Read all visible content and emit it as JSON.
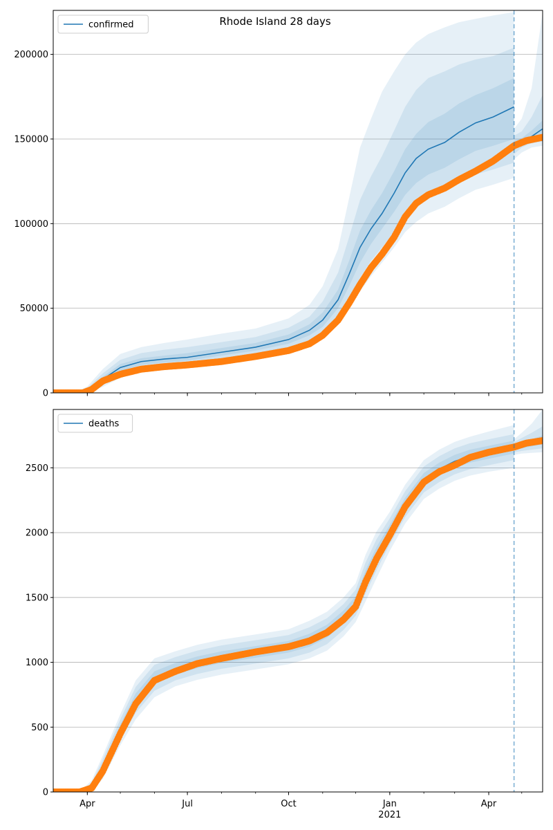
{
  "figure": {
    "title": "Rhode Island 28 days"
  },
  "chart_data": [
    {
      "type": "line",
      "legend": "confirmed",
      "legend_position": "top-left",
      "grid": "y",
      "xlim": [
        "2020-03-01",
        "2021-05-20"
      ],
      "ylim": [
        0,
        226000
      ],
      "yticks": [
        0,
        50000,
        100000,
        150000,
        200000
      ],
      "xticks": [
        {
          "date": "2020-04-01",
          "label": "Apr"
        },
        {
          "date": "2020-07-01",
          "label": "Jul"
        },
        {
          "date": "2020-10-01",
          "label": "Oct"
        },
        {
          "date": "2021-01-01",
          "label": "Jan",
          "sublabel": "2021"
        },
        {
          "date": "2021-04-01",
          "label": "Apr"
        }
      ],
      "forecast_start": "2021-04-24",
      "colors": {
        "model": "#1f77b4",
        "observed": "#ff7f0e"
      },
      "model": {
        "x": [
          "2020-03-01",
          "2020-03-20",
          "2020-04-01",
          "2020-04-15",
          "2020-05-01",
          "2020-05-20",
          "2020-06-10",
          "2020-07-01",
          "2020-08-01",
          "2020-09-01",
          "2020-10-01",
          "2020-10-20",
          "2020-11-01",
          "2020-11-15",
          "2020-11-25",
          "2020-12-05",
          "2020-12-15",
          "2020-12-25",
          "2021-01-05",
          "2021-01-15",
          "2021-01-25",
          "2021-02-05",
          "2021-02-20",
          "2021-03-05",
          "2021-03-20",
          "2021-04-05",
          "2021-04-24"
        ],
        "median": [
          0,
          0,
          1500,
          8000,
          15000,
          18500,
          20000,
          21000,
          24000,
          27000,
          31500,
          37000,
          43000,
          55000,
          70000,
          86000,
          97000,
          106000,
          118000,
          130000,
          138500,
          144000,
          148000,
          154000,
          159500,
          163000,
          169000
        ],
        "band_50": [
          [
            0,
            0,
            1000,
            6500,
            13000,
            16500,
            18000,
            19000,
            22000,
            25000,
            29000,
            34000,
            39000,
            50000,
            63000,
            77000,
            88000,
            97000,
            107000,
            117000,
            124000,
            129000,
            133000,
            138000,
            143000,
            146000,
            150000
          ],
          [
            0,
            0,
            2000,
            9500,
            17000,
            20500,
            22000,
            23500,
            26500,
            29500,
            34500,
            40500,
            47500,
            61000,
            78000,
            96000,
            108000,
            118000,
            131000,
            144000,
            153000,
            160000,
            165000,
            171000,
            176000,
            180000,
            186000
          ]
        ],
        "band_80": [
          [
            0,
            0,
            600,
            5000,
            11000,
            14000,
            15500,
            16500,
            19500,
            22500,
            26000,
            31000,
            35500,
            45000,
            56000,
            68000,
            78000,
            86000,
            95000,
            104000,
            110000,
            115000,
            119000,
            124000,
            129000,
            132000,
            136000
          ],
          [
            0,
            0,
            2800,
            11500,
            19500,
            23500,
            25500,
            27000,
            30000,
            33000,
            38500,
            45000,
            54000,
            71000,
            92000,
            114000,
            128000,
            140000,
            155000,
            169000,
            179000,
            186000,
            190000,
            194000,
            197000,
            199000,
            204000
          ]
        ],
        "band_95": [
          [
            0,
            0,
            300,
            3500,
            9000,
            12000,
            13500,
            14500,
            17500,
            20500,
            23500,
            28000,
            32000,
            40000,
            50000,
            60000,
            69000,
            77000,
            86000,
            95000,
            101000,
            106000,
            110000,
            115000,
            120000,
            123000,
            127000
          ],
          [
            0,
            0,
            3800,
            14000,
            23000,
            27000,
            29500,
            31500,
            35000,
            38000,
            44000,
            52000,
            63000,
            85000,
            115000,
            145000,
            162000,
            178000,
            190000,
            200000,
            207000,
            212000,
            216000,
            219000,
            221000,
            223000,
            225000
          ]
        ]
      },
      "forecast": {
        "x": [
          "2021-04-24",
          "2021-05-01",
          "2021-05-10",
          "2021-05-20"
        ],
        "median": [
          146500,
          148500,
          151500,
          156000
        ],
        "band_50": [
          [
            144000,
            147000,
            149500,
            152000
          ],
          [
            149000,
            150500,
            155000,
            161000
          ]
        ],
        "band_80": [
          [
            141000,
            145000,
            147500,
            148500
          ],
          [
            152000,
            154500,
            163000,
            176000
          ]
        ],
        "band_95": [
          [
            138000,
            142000,
            145000,
            146000
          ],
          [
            156000,
            162000,
            180000,
            225000
          ]
        ]
      },
      "observed": {
        "x": [
          "2020-03-01",
          "2020-03-28",
          "2020-04-05",
          "2020-04-15",
          "2020-05-01",
          "2020-05-20",
          "2020-06-10",
          "2020-07-01",
          "2020-08-01",
          "2020-09-01",
          "2020-10-01",
          "2020-10-20",
          "2020-11-01",
          "2020-11-15",
          "2020-11-25",
          "2020-12-05",
          "2020-12-15",
          "2020-12-25",
          "2021-01-05",
          "2021-01-15",
          "2021-01-25",
          "2021-02-05",
          "2021-02-20",
          "2021-03-05",
          "2021-03-20",
          "2021-04-05",
          "2021-04-24",
          "2021-05-05",
          "2021-05-20"
        ],
        "y": [
          0,
          0,
          2000,
          7000,
          11000,
          14000,
          15500,
          16500,
          18500,
          21500,
          25000,
          29000,
          34000,
          43000,
          53000,
          64000,
          74000,
          82000,
          92000,
          104000,
          112000,
          117000,
          121000,
          126000,
          131000,
          137000,
          146000,
          149000,
          151000
        ]
      }
    },
    {
      "type": "line",
      "legend": "deaths",
      "legend_position": "top-left",
      "grid": "y",
      "xlim": [
        "2020-03-01",
        "2021-05-20"
      ],
      "ylim": [
        0,
        2950
      ],
      "yticks": [
        0,
        500,
        1000,
        1500,
        2000,
        2500
      ],
      "xticks": [
        {
          "date": "2020-04-01",
          "label": "Apr"
        },
        {
          "date": "2020-07-01",
          "label": "Jul"
        },
        {
          "date": "2020-10-01",
          "label": "Oct"
        },
        {
          "date": "2021-01-01",
          "label": "Jan",
          "sublabel": "2021"
        },
        {
          "date": "2021-04-01",
          "label": "Apr"
        }
      ],
      "forecast_start": "2021-04-24",
      "colors": {
        "model": "#1f77b4",
        "observed": "#ff7f0e"
      },
      "model": {
        "x": [
          "2020-03-01",
          "2020-03-25",
          "2020-04-05",
          "2020-04-15",
          "2020-05-01",
          "2020-05-15",
          "2020-06-01",
          "2020-06-20",
          "2020-07-10",
          "2020-08-01",
          "2020-09-01",
          "2020-10-01",
          "2020-10-20",
          "2020-11-05",
          "2020-11-20",
          "2020-12-01",
          "2020-12-10",
          "2020-12-20",
          "2021-01-01",
          "2021-01-15",
          "2021-02-01",
          "2021-02-15",
          "2021-03-01",
          "2021-03-15",
          "2021-04-01",
          "2021-04-24"
        ],
        "median": [
          0,
          0,
          40,
          190,
          480,
          710,
          880,
          950,
          1000,
          1040,
          1080,
          1120,
          1170,
          1240,
          1350,
          1460,
          1650,
          1830,
          2010,
          2220,
          2410,
          2490,
          2550,
          2590,
          2620,
          2660
        ],
        "band_50": [
          [
            0,
            0,
            25,
            160,
            440,
            660,
            830,
            905,
            955,
            995,
            1035,
            1075,
            1120,
            1190,
            1300,
            1410,
            1590,
            1770,
            1960,
            2170,
            2360,
            2440,
            2500,
            2540,
            2570,
            2610
          ],
          [
            0,
            0,
            55,
            220,
            520,
            760,
            930,
            995,
            1045,
            1085,
            1125,
            1165,
            1220,
            1290,
            1400,
            1510,
            1710,
            1890,
            2060,
            2270,
            2460,
            2540,
            2600,
            2640,
            2670,
            2710
          ]
        ],
        "band_80": [
          [
            0,
            0,
            12,
            130,
            400,
            610,
            780,
            860,
            910,
            950,
            990,
            1030,
            1075,
            1140,
            1250,
            1360,
            1530,
            1710,
            1910,
            2120,
            2310,
            2390,
            2450,
            2490,
            2520,
            2560
          ],
          [
            0,
            0,
            70,
            250,
            560,
            810,
            980,
            1040,
            1090,
            1130,
            1170,
            1210,
            1270,
            1340,
            1450,
            1560,
            1770,
            1950,
            2110,
            2320,
            2510,
            2590,
            2650,
            2690,
            2720,
            2760
          ]
        ],
        "band_95": [
          [
            0,
            0,
            5,
            100,
            360,
            560,
            730,
            815,
            865,
            905,
            945,
            985,
            1030,
            1090,
            1200,
            1310,
            1470,
            1650,
            1860,
            2070,
            2260,
            2340,
            2400,
            2440,
            2470,
            2500
          ],
          [
            0,
            0,
            90,
            280,
            600,
            860,
            1030,
            1085,
            1135,
            1175,
            1215,
            1255,
            1320,
            1390,
            1500,
            1610,
            1830,
            2010,
            2160,
            2370,
            2560,
            2640,
            2700,
            2740,
            2780,
            2830
          ]
        ]
      },
      "forecast": {
        "x": [
          "2021-04-24",
          "2021-05-01",
          "2021-05-10",
          "2021-05-20"
        ],
        "median": [
          2660,
          2670,
          2690,
          2710
        ],
        "band_50": [
          [
            2640,
            2650,
            2665,
            2680
          ],
          [
            2680,
            2695,
            2720,
            2750
          ]
        ],
        "band_80": [
          [
            2620,
            2630,
            2640,
            2650
          ],
          [
            2700,
            2730,
            2770,
            2820
          ]
        ],
        "band_95": [
          [
            2600,
            2610,
            2615,
            2620
          ],
          [
            2720,
            2770,
            2840,
            2950
          ]
        ]
      },
      "observed": {
        "x": [
          "2020-03-01",
          "2020-03-25",
          "2020-04-05",
          "2020-04-15",
          "2020-05-01",
          "2020-05-15",
          "2020-06-01",
          "2020-06-20",
          "2020-07-10",
          "2020-08-01",
          "2020-09-01",
          "2020-10-01",
          "2020-10-20",
          "2020-11-05",
          "2020-11-20",
          "2020-12-01",
          "2020-12-10",
          "2020-12-20",
          "2021-01-01",
          "2021-01-15",
          "2021-02-01",
          "2021-02-15",
          "2021-03-01",
          "2021-03-15",
          "2021-04-01",
          "2021-04-24",
          "2021-05-05",
          "2021-05-20"
        ],
        "y": [
          0,
          0,
          30,
          160,
          450,
          680,
          860,
          930,
          990,
          1030,
          1080,
          1120,
          1165,
          1230,
          1330,
          1430,
          1620,
          1800,
          1980,
          2200,
          2390,
          2470,
          2520,
          2580,
          2620,
          2660,
          2690,
          2710
        ]
      }
    }
  ]
}
